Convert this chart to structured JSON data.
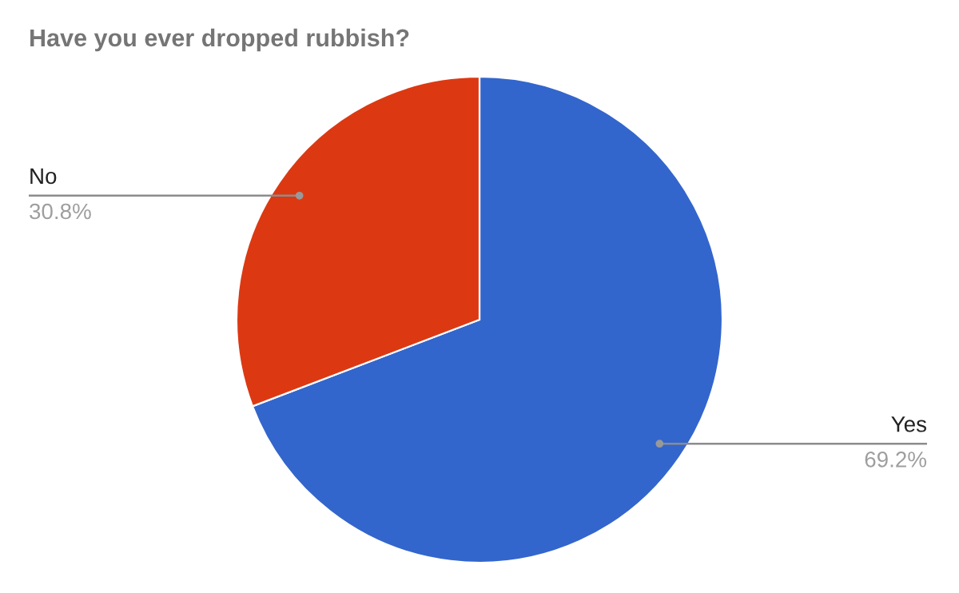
{
  "chart_data": {
    "type": "pie",
    "title": "Have you ever dropped rubbish?",
    "categories": [
      "Yes",
      "No"
    ],
    "values": [
      69.2,
      30.8
    ],
    "colors": [
      "#3366cc",
      "#dc3912"
    ],
    "value_labels": [
      "69.2%",
      "30.8%"
    ],
    "legend": false
  }
}
